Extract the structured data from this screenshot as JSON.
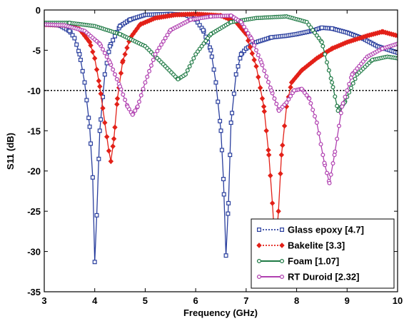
{
  "chart_data": {
    "type": "line",
    "xlabel": "Frequency (GHz)",
    "ylabel": "S11 (dB)",
    "xlim": [
      3,
      10
    ],
    "ylim": [
      -35,
      0
    ],
    "xticks": [
      3,
      4,
      5,
      6,
      7,
      8,
      9,
      10
    ],
    "yticks": [
      0,
      -5,
      -10,
      -15,
      -20,
      -25,
      -30,
      -35
    ],
    "grid": false,
    "legend_position": "bottom-right",
    "reference_line": {
      "y": -10,
      "style": "dotted",
      "color": "#000000"
    },
    "series": [
      {
        "name": "Glass epoxy [4.7]",
        "color": "#2a3f9e",
        "marker": "square",
        "points": [
          [
            3.0,
            -1.8
          ],
          [
            3.3,
            -1.9
          ],
          [
            3.5,
            -2.6
          ],
          [
            3.6,
            -3.5
          ],
          [
            3.7,
            -5.5
          ],
          [
            3.8,
            -9.0
          ],
          [
            3.9,
            -14.5
          ],
          [
            3.96,
            -20.8
          ],
          [
            4.0,
            -31.3
          ],
          [
            4.04,
            -25.5
          ],
          [
            4.1,
            -15.0
          ],
          [
            4.2,
            -8.0
          ],
          [
            4.3,
            -4.5
          ],
          [
            4.5,
            -2.0
          ],
          [
            4.7,
            -1.2
          ],
          [
            5.0,
            -0.6
          ],
          [
            5.5,
            -0.5
          ],
          [
            5.8,
            -0.6
          ],
          [
            6.0,
            -1.2
          ],
          [
            6.15,
            -2.5
          ],
          [
            6.3,
            -5.0
          ],
          [
            6.4,
            -9.0
          ],
          [
            6.5,
            -15.0
          ],
          [
            6.55,
            -21.0
          ],
          [
            6.6,
            -30.5
          ],
          [
            6.65,
            -24.0
          ],
          [
            6.7,
            -14.0
          ],
          [
            6.8,
            -8.0
          ],
          [
            6.9,
            -5.5
          ],
          [
            7.0,
            -4.8
          ],
          [
            7.2,
            -4.0
          ],
          [
            7.5,
            -3.4
          ],
          [
            7.8,
            -3.2
          ],
          [
            8.0,
            -3.0
          ],
          [
            8.3,
            -2.6
          ],
          [
            8.5,
            -2.2
          ],
          [
            8.7,
            -2.3
          ],
          [
            9.0,
            -2.8
          ],
          [
            9.3,
            -3.5
          ],
          [
            9.6,
            -4.5
          ],
          [
            10.0,
            -5.3
          ]
        ]
      },
      {
        "name": "Bakelite [3.3]",
        "color": "#e32119",
        "marker": "diamond",
        "points": [
          [
            3.0,
            -1.8
          ],
          [
            3.5,
            -1.9
          ],
          [
            3.7,
            -2.4
          ],
          [
            3.9,
            -4.0
          ],
          [
            4.0,
            -6.0
          ],
          [
            4.1,
            -9.5
          ],
          [
            4.2,
            -14.0
          ],
          [
            4.28,
            -17.5
          ],
          [
            4.32,
            -18.8
          ],
          [
            4.38,
            -16.0
          ],
          [
            4.45,
            -11.0
          ],
          [
            4.55,
            -6.5
          ],
          [
            4.7,
            -3.5
          ],
          [
            4.9,
            -1.8
          ],
          [
            5.2,
            -1.0
          ],
          [
            5.6,
            -0.6
          ],
          [
            6.0,
            -0.5
          ],
          [
            6.5,
            -0.7
          ],
          [
            6.8,
            -1.5
          ],
          [
            7.0,
            -3.0
          ],
          [
            7.2,
            -7.0
          ],
          [
            7.35,
            -12.0
          ],
          [
            7.45,
            -18.0
          ],
          [
            7.52,
            -24.0
          ],
          [
            7.58,
            -30.0
          ],
          [
            7.64,
            -25.0
          ],
          [
            7.7,
            -18.0
          ],
          [
            7.8,
            -12.0
          ],
          [
            7.9,
            -9.0
          ],
          [
            8.1,
            -7.5
          ],
          [
            8.4,
            -6.0
          ],
          [
            8.7,
            -4.8
          ],
          [
            9.0,
            -4.0
          ],
          [
            9.4,
            -3.2
          ],
          [
            9.7,
            -2.7
          ],
          [
            10.0,
            -3.2
          ]
        ]
      },
      {
        "name": "Foam [1.07]",
        "color": "#1f7a45",
        "marker": "circle",
        "points": [
          [
            3.0,
            -1.6
          ],
          [
            3.5,
            -1.6
          ],
          [
            4.0,
            -2.0
          ],
          [
            4.5,
            -3.0
          ],
          [
            5.0,
            -4.5
          ],
          [
            5.4,
            -7.0
          ],
          [
            5.65,
            -8.6
          ],
          [
            5.8,
            -8.0
          ],
          [
            6.0,
            -5.5
          ],
          [
            6.3,
            -3.0
          ],
          [
            6.7,
            -1.5
          ],
          [
            7.2,
            -1.0
          ],
          [
            7.8,
            -0.8
          ],
          [
            8.2,
            -1.5
          ],
          [
            8.5,
            -4.0
          ],
          [
            8.7,
            -9.0
          ],
          [
            8.82,
            -12.5
          ],
          [
            8.95,
            -11.5
          ],
          [
            9.2,
            -8.0
          ],
          [
            9.5,
            -6.2
          ],
          [
            9.8,
            -5.8
          ],
          [
            10.0,
            -6.0
          ]
        ]
      },
      {
        "name": "RT Duroid [2.32]",
        "color": "#b040b0",
        "marker": "circle",
        "points": [
          [
            3.0,
            -1.8
          ],
          [
            3.4,
            -1.9
          ],
          [
            3.8,
            -2.6
          ],
          [
            4.1,
            -4.2
          ],
          [
            4.3,
            -6.5
          ],
          [
            4.5,
            -9.5
          ],
          [
            4.65,
            -12.0
          ],
          [
            4.75,
            -13.0
          ],
          [
            4.85,
            -12.0
          ],
          [
            5.0,
            -9.0
          ],
          [
            5.2,
            -5.5
          ],
          [
            5.5,
            -2.5
          ],
          [
            5.9,
            -1.2
          ],
          [
            6.3,
            -0.8
          ],
          [
            6.7,
            -0.7
          ],
          [
            6.9,
            -1.5
          ],
          [
            7.1,
            -3.5
          ],
          [
            7.3,
            -6.5
          ],
          [
            7.5,
            -10.0
          ],
          [
            7.65,
            -12.5
          ],
          [
            7.8,
            -11.5
          ],
          [
            7.95,
            -10.0
          ],
          [
            8.1,
            -9.8
          ],
          [
            8.25,
            -11.0
          ],
          [
            8.4,
            -14.0
          ],
          [
            8.55,
            -19.0
          ],
          [
            8.65,
            -21.5
          ],
          [
            8.75,
            -18.0
          ],
          [
            8.9,
            -12.0
          ],
          [
            9.1,
            -8.0
          ],
          [
            9.4,
            -5.8
          ],
          [
            9.7,
            -4.8
          ],
          [
            10.0,
            -4.2
          ]
        ]
      }
    ]
  }
}
